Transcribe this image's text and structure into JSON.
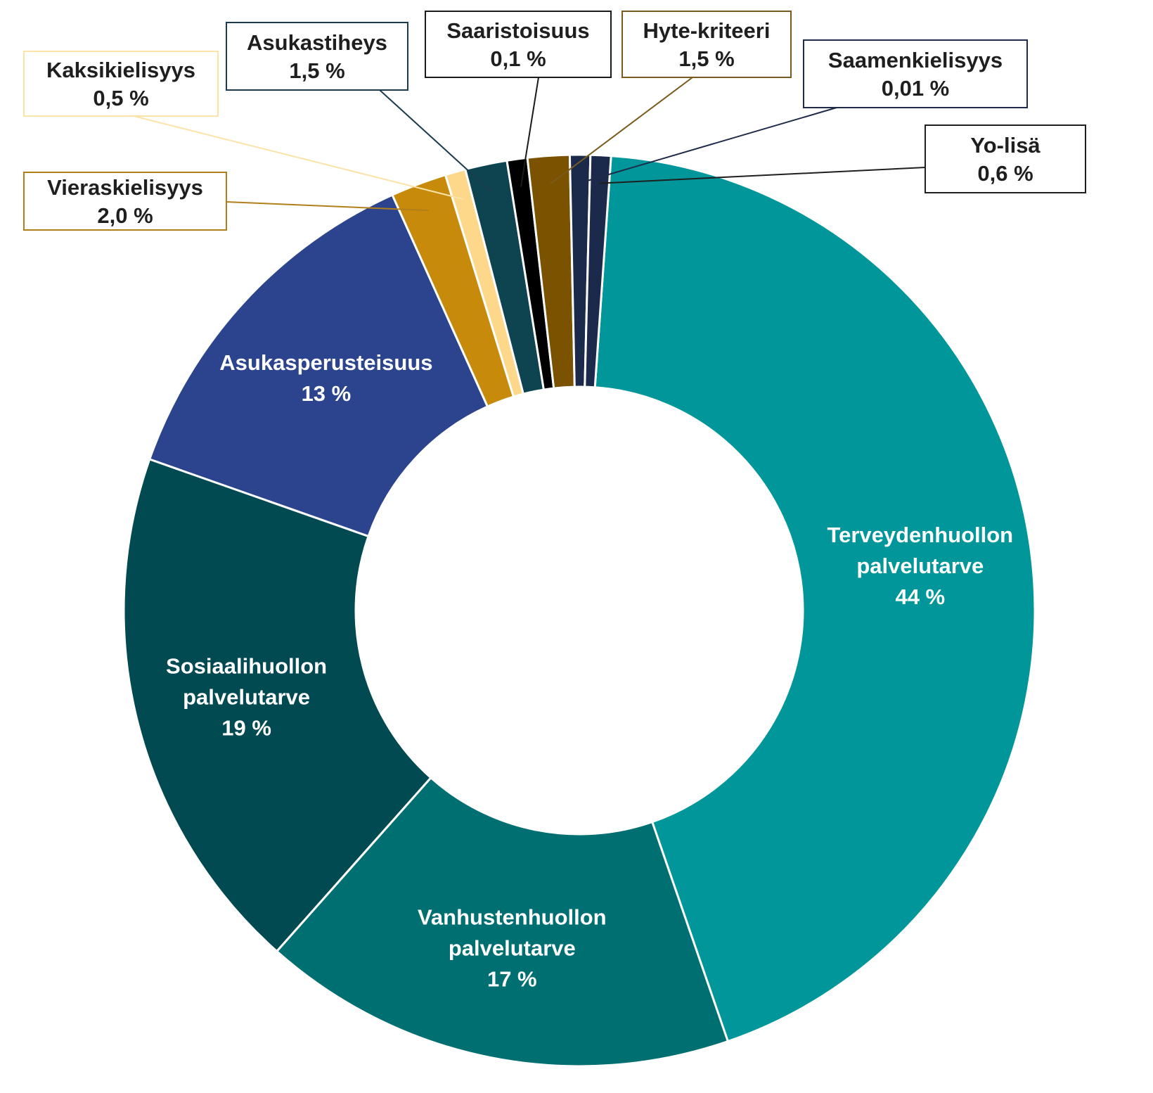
{
  "chart_data": {
    "type": "pie",
    "donut": true,
    "slices": [
      {
        "label": "Terveydenhuollon palvelutarve",
        "lines": [
          "Terveydenhuollon",
          "palvelutarve",
          "44 %"
        ],
        "value": 44.0,
        "display": "44 %",
        "color": "#00969A",
        "label_style": "inside"
      },
      {
        "label": "Vanhustenhuollon palvelutarve",
        "lines": [
          "Vanhustenhuollon",
          "palvelutarve",
          "17 %"
        ],
        "value": 17.0,
        "display": "17 %",
        "color": "#006F72",
        "label_style": "inside"
      },
      {
        "label": "Sosiaalihuollon palvelutarve",
        "lines": [
          "Sosiaalihuollon",
          "palvelutarve",
          "19 %"
        ],
        "value": 19.0,
        "display": "19 %",
        "color": "#014A51",
        "label_style": "inside"
      },
      {
        "label": "Asukasperusteisuus",
        "lines": [
          "Asukasperusteisuus",
          "13 %"
        ],
        "value": 13.0,
        "display": "13 %",
        "color": "#2B448D",
        "label_style": "inside"
      },
      {
        "label": "Vieraskielisyys",
        "lines": [
          "Vieraskielisyys",
          "2,0 %"
        ],
        "value": 2.0,
        "display": "2,0 %",
        "color": "#C88A0A",
        "label_style": "callout"
      },
      {
        "label": "Kaksikielisyys",
        "lines": [
          "Kaksikielisyys",
          "0,5 %"
        ],
        "value": 0.5,
        "display": "0,5 %",
        "color": "#FDD88A",
        "label_style": "callout"
      },
      {
        "label": "Asukastiheys",
        "lines": [
          "Asukastiheys",
          "1,5 %"
        ],
        "value": 1.5,
        "display": "1,5 %",
        "color": "#0E4450",
        "label_style": "callout"
      },
      {
        "label": "Saaristoisuus",
        "lines": [
          "Saaristoisuus",
          "0,1 %"
        ],
        "value": 0.1,
        "display": "0,1 %",
        "color": "#000000",
        "label_style": "callout"
      },
      {
        "label": "Hyte-kriteeri",
        "lines": [
          "Hyte-kriteeri",
          "1,5 %"
        ],
        "value": 1.5,
        "display": "1,5 %",
        "color": "#7A5200",
        "label_style": "callout"
      },
      {
        "label": "Saamenkielisyys",
        "lines": [
          "Saamenkielisyys",
          "0,01 %"
        ],
        "value": 0.01,
        "display": "0,01 %",
        "color": "#1B2A4A",
        "label_style": "callout"
      },
      {
        "label": "Yo-lisä",
        "lines": [
          "Yo-lisä",
          "0,6 %"
        ],
        "value": 0.6,
        "display": "0,6 %",
        "color": "#1B2A4A",
        "label_style": "callout"
      }
    ],
    "callout_borders": {
      "Vieraskielisyys": "#B07F1A",
      "Kaksikielisyys": "#FCE3A8",
      "Asukastiheys": "#1C3B4E",
      "Saaristoisuus": "#1A1A1A",
      "Hyte-kriteeri": "#7A5A1E",
      "Saamenkielisyys": "#1F2B48",
      "Yo-lisä": "#1F1F1F"
    },
    "title": "",
    "legend": "none"
  }
}
